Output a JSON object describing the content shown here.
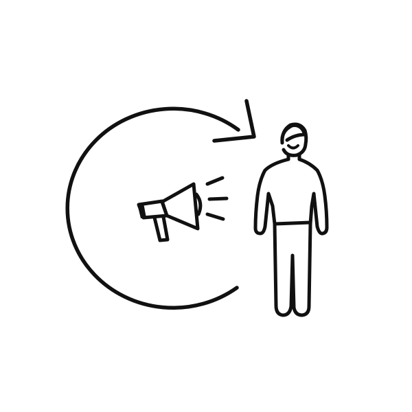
{
  "illustration": {
    "icons": [
      "refresh-arrow-icon",
      "megaphone-icon",
      "sound-waves-icon",
      "person-icon"
    ],
    "colors": {
      "background": "#ffffff",
      "ink": "#111111"
    }
  }
}
